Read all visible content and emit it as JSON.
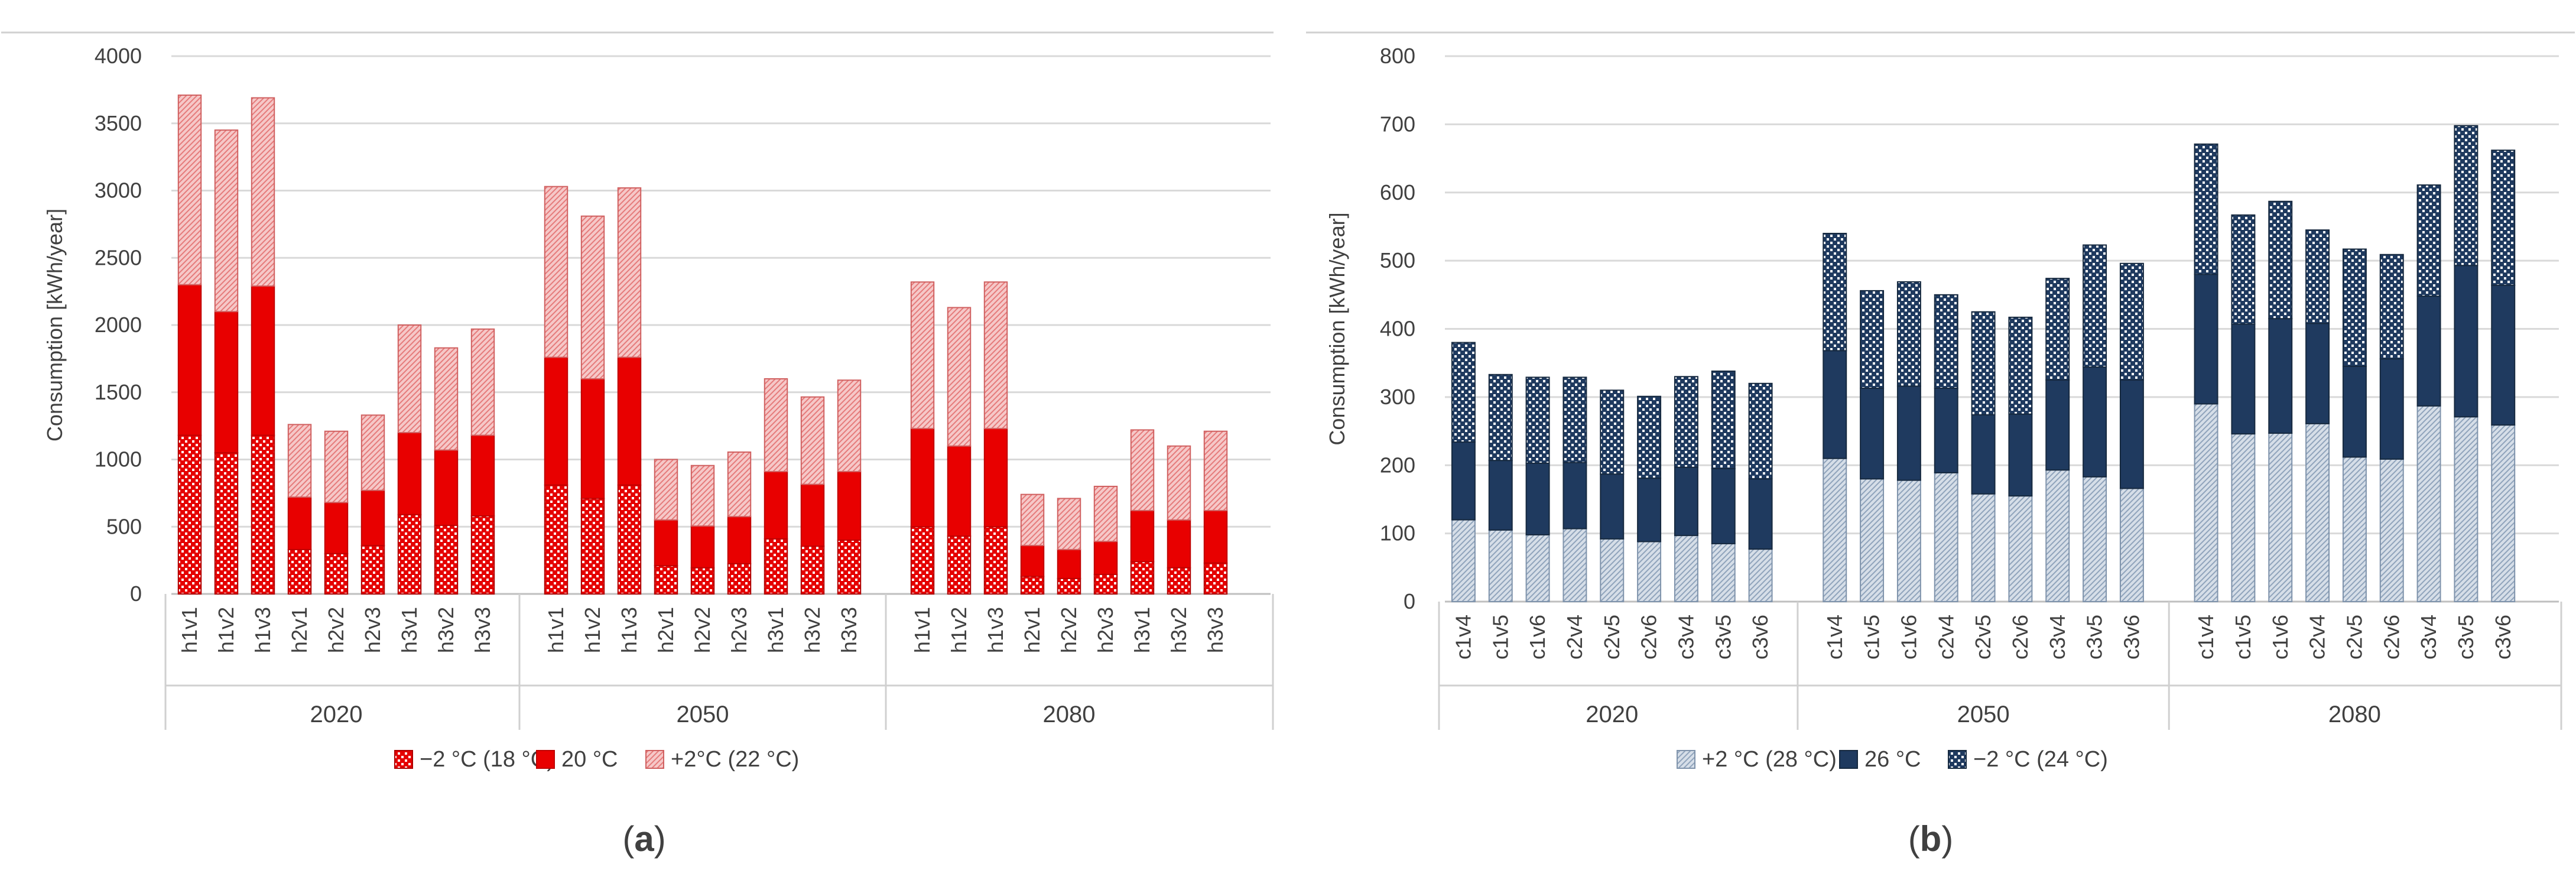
{
  "figure": {
    "panel_labels": [
      {
        "open": "(",
        "letter": "a",
        "close": ")"
      },
      {
        "open": "(",
        "letter": "b",
        "close": ")"
      }
    ]
  },
  "chart_data": [
    {
      "type": "bar",
      "stacked": true,
      "panel": "a",
      "ylabel": "Consumption [kWh/year]",
      "ylim": [
        0,
        4000
      ],
      "yticks": [
        0,
        500,
        1000,
        1500,
        2000,
        2500,
        3000,
        3500,
        4000
      ],
      "categories": [
        "h1v1",
        "h1v2",
        "h1v3",
        "h2v1",
        "h2v2",
        "h2v3",
        "h3v1",
        "h3v2",
        "h3v3"
      ],
      "groups": [
        "2020",
        "2050",
        "2080"
      ],
      "legend_position": "bottom",
      "series": [
        {
          "name": "−2 °C (18 °C)",
          "pattern": "red-dots",
          "values": [
            [
              1180,
              1050,
              1180,
              330,
              300,
              360,
              590,
              510,
              580
            ],
            [
              810,
              710,
              810,
              210,
              195,
              225,
              410,
              355,
              400
            ],
            [
              500,
              430,
              500,
              130,
              115,
              145,
              240,
              195,
              230
            ]
          ]
        },
        {
          "name": "20 °C",
          "pattern": "solid-red",
          "values": [
            [
              1120,
              1050,
              1110,
              390,
              380,
              410,
              610,
              560,
              600
            ],
            [
              950,
              890,
              950,
              340,
              310,
              350,
              500,
              460,
              510
            ],
            [
              730,
              670,
              730,
              230,
              215,
              245,
              380,
              355,
              390
            ]
          ]
        },
        {
          "name": "+2°C (22 °C)",
          "pattern": "pink-hatch",
          "values": [
            [
              1410,
              1350,
              1400,
              540,
              530,
              560,
              800,
              760,
              790
            ],
            [
              1270,
              1210,
              1260,
              450,
              450,
              480,
              690,
              650,
              680
            ],
            [
              1090,
              1030,
              1090,
              380,
              380,
              410,
              600,
              550,
              590
            ]
          ]
        }
      ],
      "colors": {
        "red": "#e80000",
        "pink": "#f2b0b0"
      }
    },
    {
      "type": "bar",
      "stacked": true,
      "panel": "b",
      "ylabel": "Consumption [kWh/year]",
      "ylim": [
        0,
        800
      ],
      "yticks": [
        0,
        100,
        200,
        300,
        400,
        500,
        600,
        700,
        800
      ],
      "categories": [
        "c1v4",
        "c1v5",
        "c1v6",
        "c2v4",
        "c2v5",
        "c2v6",
        "c3v4",
        "c3v5",
        "c3v6"
      ],
      "groups": [
        "2020",
        "2050",
        "2080"
      ],
      "legend_position": "bottom",
      "series": [
        {
          "name": "+2 °C (28 °C)",
          "pattern": "light-blue-hatch",
          "values": [
            [
              120,
              105,
              98,
              107,
              92,
              88,
              97,
              85,
              77
            ],
            [
              210,
              180,
              178,
              189,
              158,
              155,
              193,
              183,
              166
            ],
            [
              290,
              246,
              247,
              261,
              212,
              209,
              287,
              271,
              259
            ]
          ]
        },
        {
          "name": "26 °C",
          "pattern": "solid-navy",
          "values": [
            [
              114,
              102,
              105,
              97,
              95,
              93,
              100,
              110,
              103
            ],
            [
              158,
              133,
              138,
              124,
              116,
              120,
              132,
              161,
              159
            ],
            [
              190,
              161,
              168,
              147,
              133,
              147,
              161,
              222,
              205
            ]
          ]
        },
        {
          "name": "−2 °C (24 °C)",
          "pattern": "navy-dots",
          "values": [
            [
              146,
              126,
              126,
              125,
              123,
              120,
              133,
              143,
              140
            ],
            [
              172,
              143,
              153,
              137,
              151,
              142,
              149,
              179,
              171
            ],
            [
              191,
              160,
              172,
              137,
              172,
              153,
              163,
              205,
              198
            ]
          ]
        }
      ],
      "colors": {
        "navy": "#1f3a5f",
        "light": "#c8d4e2"
      }
    }
  ]
}
